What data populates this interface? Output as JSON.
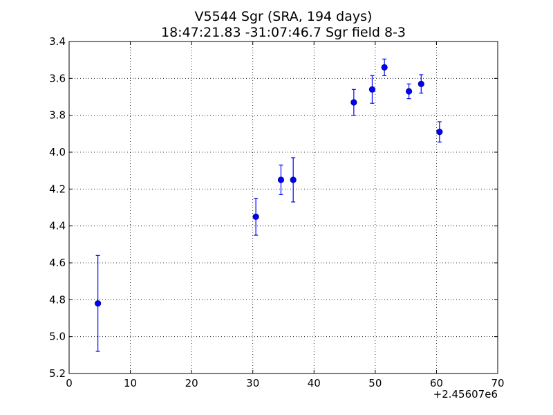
{
  "chart_data": {
    "type": "scatter",
    "title": "V5544 Sgr  (SRA, 194 days)",
    "subtitle": "18:47:21.83 -31:07:46.7 Sgr field 8-3",
    "xlabel": "",
    "ylabel": "",
    "x_offset_label": "+2.45607e6",
    "xlim": [
      0,
      70
    ],
    "ylim": [
      5.2,
      3.4
    ],
    "y_inverted": true,
    "grid": true,
    "x_ticks": [
      "0",
      "10",
      "20",
      "30",
      "40",
      "50",
      "60",
      "70"
    ],
    "y_ticks": [
      "3.4",
      "3.6",
      "3.8",
      "4.0",
      "4.2",
      "4.4",
      "4.6",
      "4.8",
      "5.0",
      "5.2"
    ],
    "marker_color": "#0000ff",
    "series": [
      {
        "points": [
          {
            "x": 4.7,
            "y": 4.82,
            "err": 0.26
          },
          {
            "x": 30.5,
            "y": 4.35,
            "err": 0.1
          },
          {
            "x": 34.6,
            "y": 4.15,
            "err": 0.08
          },
          {
            "x": 36.6,
            "y": 4.15,
            "err": 0.12
          },
          {
            "x": 46.5,
            "y": 3.73,
            "err": 0.07
          },
          {
            "x": 49.5,
            "y": 3.66,
            "err": 0.075
          },
          {
            "x": 51.5,
            "y": 3.54,
            "err": 0.045
          },
          {
            "x": 55.5,
            "y": 3.67,
            "err": 0.04
          },
          {
            "x": 57.5,
            "y": 3.63,
            "err": 0.05
          },
          {
            "x": 60.5,
            "y": 3.89,
            "err": 0.055
          }
        ]
      }
    ]
  }
}
